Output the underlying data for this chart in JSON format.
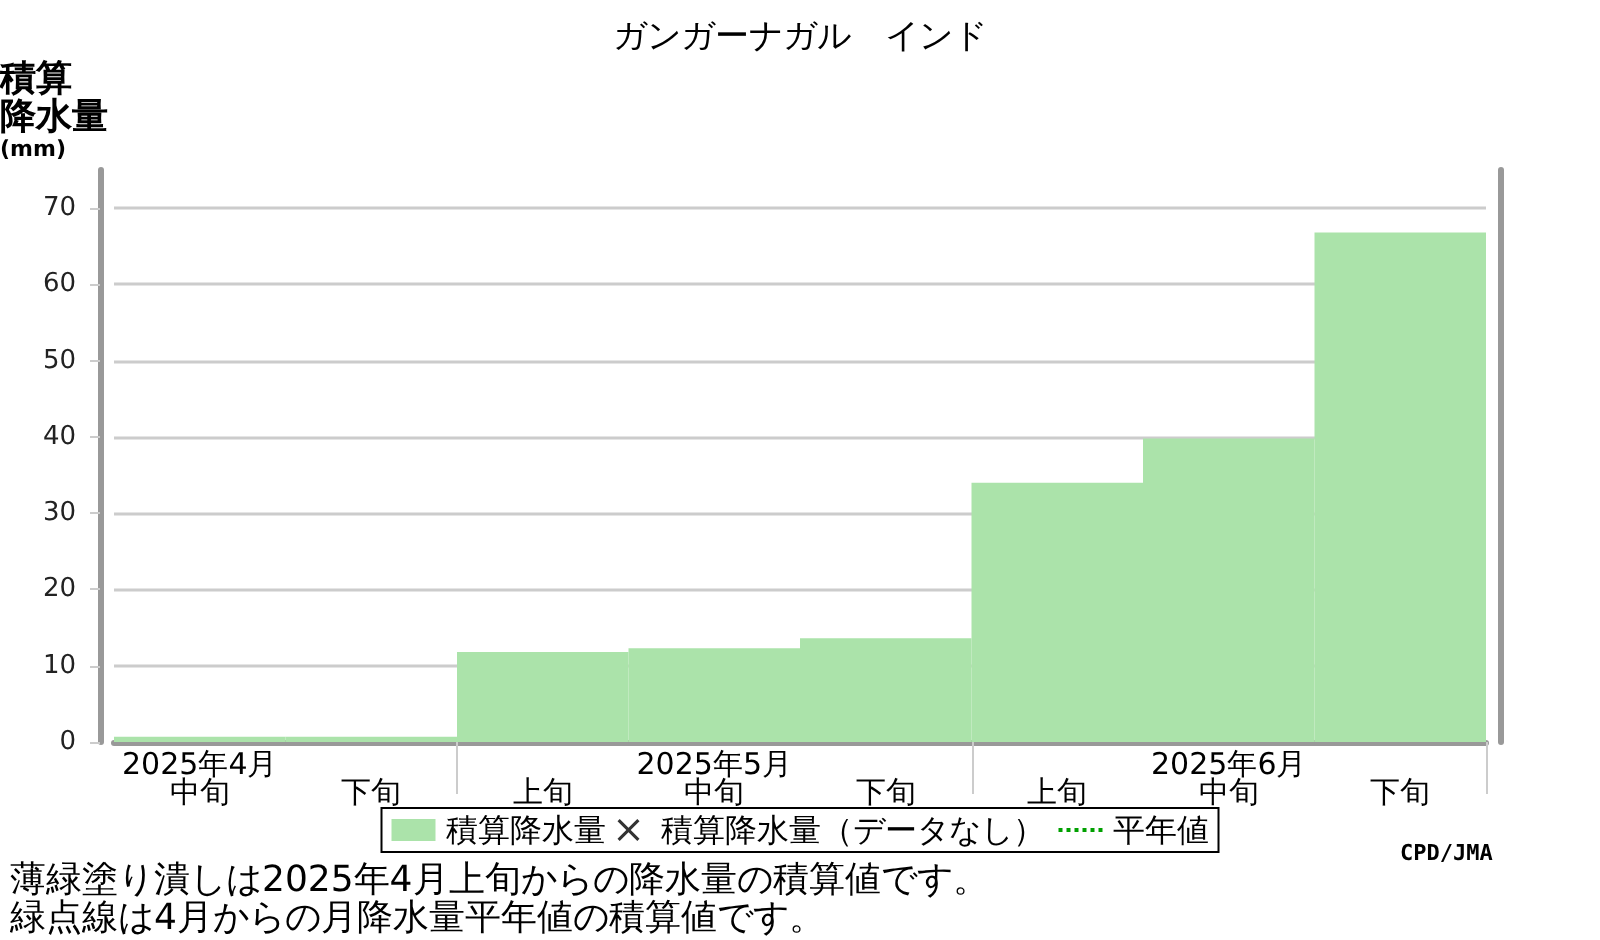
{
  "chart_data": {
    "type": "bar",
    "title": "ガンガーナガル　インド",
    "ylabel": "積算降水量(mm)",
    "categories": [
      "2025年4月中旬",
      "下旬",
      "上旬",
      "2025年5月中旬",
      "下旬",
      "上旬",
      "2025年6月中旬",
      "下旬"
    ],
    "series": [
      {
        "name": "積算降水量",
        "color": "#abe3aa",
        "values": [
          0.7,
          0.7,
          11.8,
          12.3,
          13.6,
          34.0,
          39.8,
          66.8
        ]
      },
      {
        "name": "積算降水量（データなし）",
        "type": "scatter",
        "marker": "cross",
        "color": "#000000",
        "values": [
          null,
          null,
          null,
          null,
          null,
          null,
          null,
          null
        ]
      },
      {
        "name": "平年値",
        "type": "line",
        "line_style": "dotted",
        "marker": "none",
        "color": "#00a000",
        "values": [
          null,
          null,
          null,
          null,
          null,
          null,
          null,
          null
        ]
      }
    ],
    "ylim": [
      0,
      75
    ],
    "yticks": [
      0,
      10,
      20,
      30,
      40,
      50,
      60,
      70
    ],
    "grid": "y",
    "legend": "bottom",
    "annotations": [
      "薄緑塗り潰しは2025年4月上旬からの降水量の積算値です。",
      "緑点線は4月からの月降水量平年値の積算値です。",
      "CPD/JMA"
    ]
  }
}
